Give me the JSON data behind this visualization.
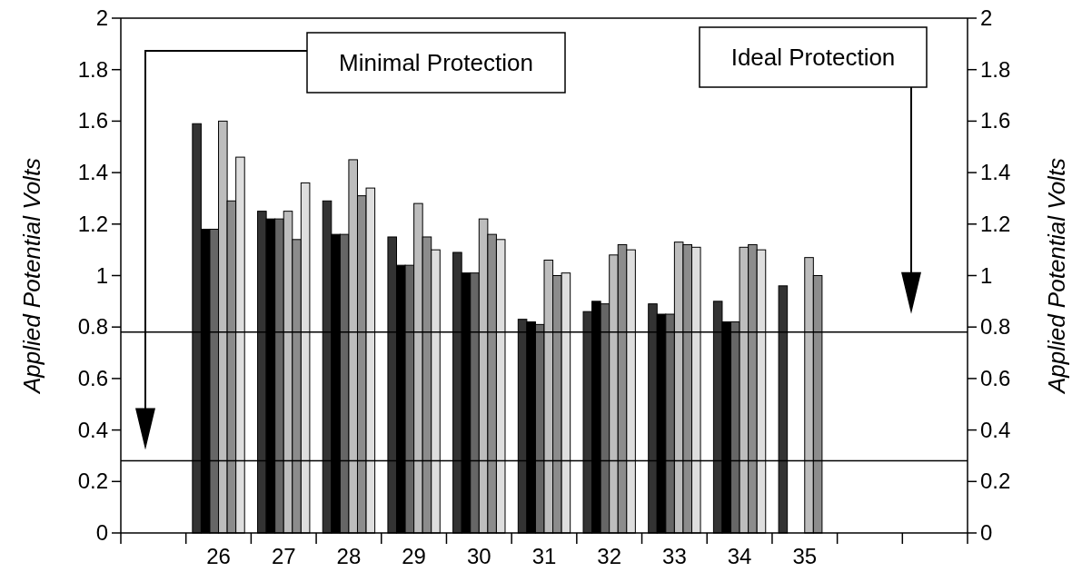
{
  "chart_data": {
    "type": "bar",
    "ylabel": "Applied Potential Volts",
    "y2label": "Applied Potential Volts",
    "categories": [
      null,
      "26",
      "27",
      "28",
      "29",
      "30",
      "31",
      "32",
      "33",
      "34",
      "35",
      null,
      null
    ],
    "series": [
      {
        "color": "#333333",
        "values": [
          null,
          1.59,
          1.25,
          1.29,
          1.15,
          1.09,
          0.83,
          0.86,
          0.89,
          0.9,
          0.96,
          null,
          null
        ]
      },
      {
        "color": "#000000",
        "values": [
          null,
          1.18,
          1.22,
          1.16,
          1.04,
          1.01,
          0.82,
          0.9,
          0.85,
          0.82,
          null,
          null,
          null
        ]
      },
      {
        "color": "#666666",
        "values": [
          null,
          1.18,
          1.22,
          1.16,
          1.04,
          1.01,
          0.81,
          0.89,
          0.85,
          0.82,
          null,
          null,
          null
        ]
      },
      {
        "color": "#bdbdbd",
        "values": [
          null,
          1.6,
          1.25,
          1.45,
          1.28,
          1.22,
          1.06,
          1.08,
          1.13,
          1.11,
          1.07,
          null,
          null
        ]
      },
      {
        "color": "#8c8c8c",
        "values": [
          null,
          1.29,
          1.14,
          1.31,
          1.15,
          1.16,
          1.0,
          1.12,
          1.12,
          1.12,
          1.0,
          null,
          null
        ]
      },
      {
        "color": "#dedede",
        "values": [
          null,
          1.46,
          1.36,
          1.34,
          1.1,
          1.14,
          1.01,
          1.1,
          1.11,
          1.1,
          null,
          null,
          null
        ]
      }
    ],
    "ylim": [
      0,
      2
    ],
    "yticks": [
      0,
      0.2,
      0.4,
      0.6,
      0.8,
      1,
      1.2,
      1.4,
      1.6,
      1.8,
      2
    ],
    "y2lim": [
      0,
      2
    ],
    "y2ticks": [
      0,
      0.2,
      0.4,
      0.6,
      0.8,
      1,
      1.2,
      1.4,
      1.6,
      1.8,
      2
    ],
    "ref_lines": [
      {
        "axis": "y",
        "value": 0.28
      },
      {
        "axis": "y",
        "value": 0.78
      }
    ],
    "annotations": [
      "Minimal Protection",
      "Ideal Protection"
    ]
  }
}
